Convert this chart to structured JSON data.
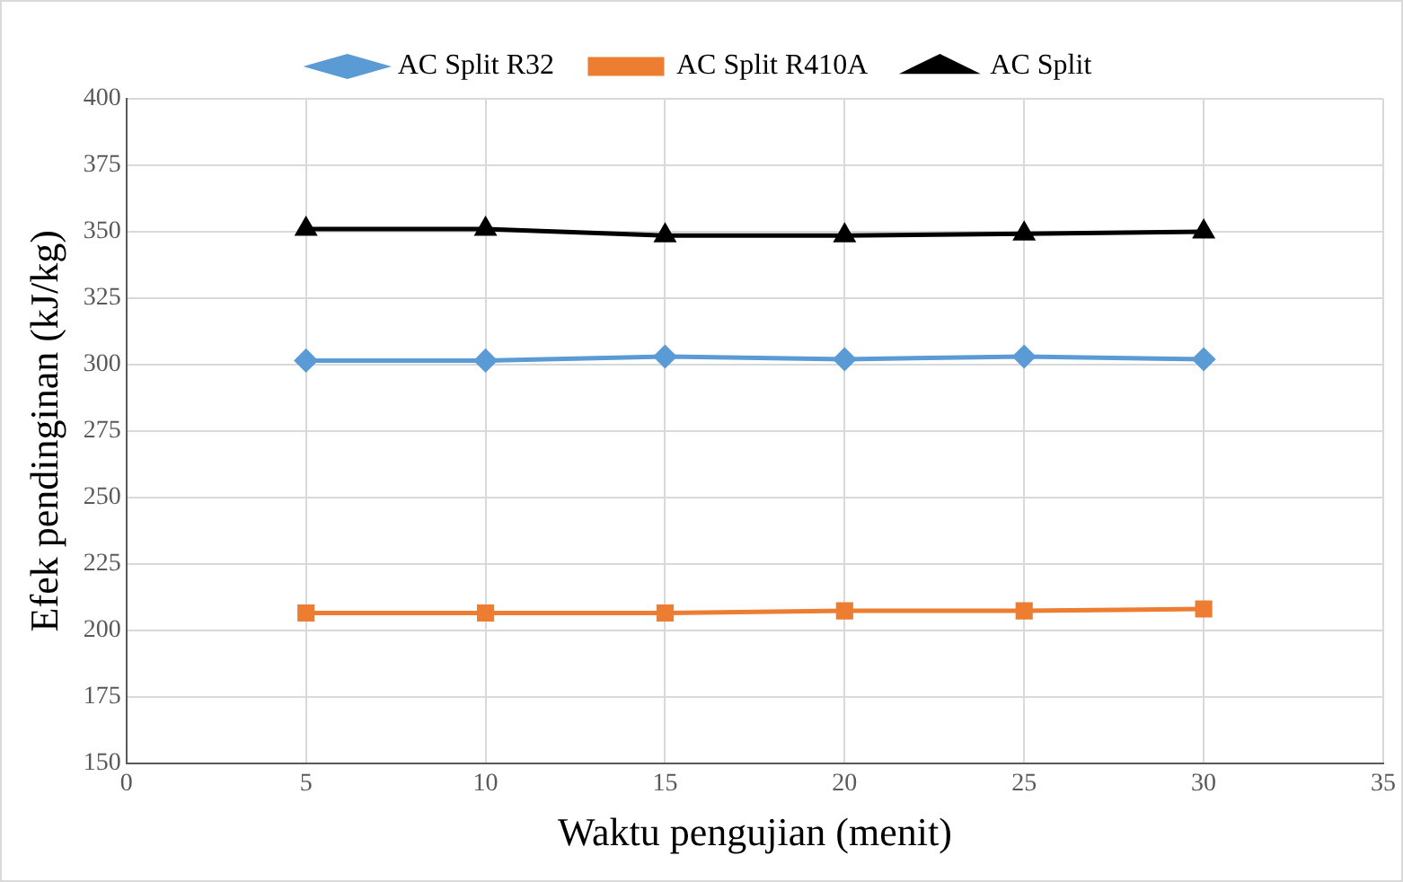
{
  "chart_data": {
    "type": "line",
    "xlabel": "Waktu pengujian (menit)",
    "ylabel": "Efek pendinginan (kJ/kg)",
    "x": [
      5,
      10,
      15,
      20,
      25,
      30
    ],
    "series": [
      {
        "name": "AC Split R32",
        "color": "#5b9bd5",
        "marker": "diamond",
        "values": [
          301.5,
          301.5,
          303,
          302,
          303,
          302
        ]
      },
      {
        "name": "AC Split R410A",
        "color": "#ed7d31",
        "marker": "square",
        "values": [
          206.5,
          206.5,
          206.5,
          207.3,
          207.3,
          208
        ]
      },
      {
        "name": "AC Split",
        "color": "#000000",
        "marker": "triangle",
        "values": [
          351,
          351,
          348.5,
          348.5,
          349.2,
          350
        ]
      }
    ],
    "xlim": [
      0,
      35
    ],
    "xticks": [
      0,
      5,
      10,
      15,
      20,
      25,
      30,
      35
    ],
    "ylim": [
      150,
      400
    ],
    "yticks": [
      150,
      175,
      200,
      225,
      250,
      275,
      300,
      325,
      350,
      375,
      400
    ],
    "grid": true,
    "legend": "top",
    "line_style": "solid"
  }
}
